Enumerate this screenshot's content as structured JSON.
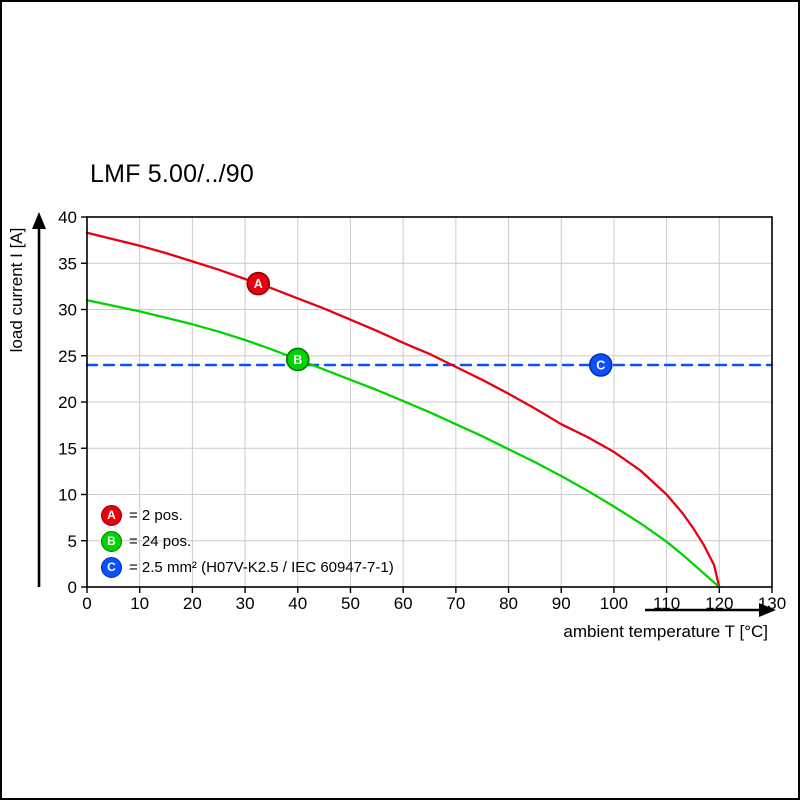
{
  "chart_data": {
    "type": "line",
    "title": "LMF 5.00/../90",
    "xlabel": "ambient temperature T [°C]",
    "ylabel": "load current I [A]",
    "xlim": [
      0,
      130
    ],
    "ylim": [
      0,
      40
    ],
    "xticks": [
      0,
      10,
      20,
      30,
      40,
      50,
      60,
      70,
      80,
      90,
      100,
      110,
      120,
      130
    ],
    "yticks": [
      0,
      5,
      10,
      15,
      20,
      25,
      30,
      35,
      40
    ],
    "grid": true,
    "grid_color": "#cccccc",
    "legend_position": "lower-left-inside",
    "series": [
      {
        "name": "A",
        "label": "= 2 pos.",
        "color": "#e8000f",
        "marker_stroke": "#9b0000",
        "style": "solid",
        "marker_at": [
          32.5,
          32.8
        ],
        "points": [
          [
            0,
            38.3
          ],
          [
            5,
            37.6
          ],
          [
            10,
            36.9
          ],
          [
            15,
            36.1
          ],
          [
            20,
            35.2
          ],
          [
            25,
            34.3
          ],
          [
            30,
            33.3
          ],
          [
            35,
            32.3
          ],
          [
            40,
            31.2
          ],
          [
            45,
            30.1
          ],
          [
            50,
            28.9
          ],
          [
            55,
            27.7
          ],
          [
            60,
            26.4
          ],
          [
            65,
            25.2
          ],
          [
            70,
            23.8
          ],
          [
            75,
            22.4
          ],
          [
            80,
            20.9
          ],
          [
            85,
            19.3
          ],
          [
            90,
            17.6
          ],
          [
            95,
            16.2
          ],
          [
            100,
            14.6
          ],
          [
            105,
            12.6
          ],
          [
            110,
            10.0
          ],
          [
            113,
            8.0
          ],
          [
            115,
            6.4
          ],
          [
            117,
            4.6
          ],
          [
            119,
            2.4
          ],
          [
            120,
            0
          ]
        ]
      },
      {
        "name": "B",
        "label": "= 24 pos.",
        "color": "#00d400",
        "marker_stroke": "#007a00",
        "style": "solid",
        "marker_at": [
          40,
          24.6
        ],
        "points": [
          [
            0,
            31.0
          ],
          [
            5,
            30.4
          ],
          [
            10,
            29.8
          ],
          [
            15,
            29.1
          ],
          [
            20,
            28.4
          ],
          [
            25,
            27.6
          ],
          [
            30,
            26.7
          ],
          [
            35,
            25.7
          ],
          [
            40,
            24.6
          ],
          [
            45,
            23.5
          ],
          [
            50,
            22.4
          ],
          [
            55,
            21.3
          ],
          [
            60,
            20.1
          ],
          [
            65,
            18.9
          ],
          [
            70,
            17.6
          ],
          [
            75,
            16.3
          ],
          [
            80,
            14.9
          ],
          [
            85,
            13.5
          ],
          [
            90,
            12.0
          ],
          [
            95,
            10.4
          ],
          [
            100,
            8.7
          ],
          [
            105,
            6.9
          ],
          [
            110,
            4.9
          ],
          [
            113,
            3.5
          ],
          [
            115,
            2.5
          ],
          [
            117,
            1.5
          ],
          [
            119,
            0.5
          ],
          [
            120,
            0
          ]
        ]
      },
      {
        "name": "C",
        "label": "= 2.5 mm² (H07V-K2.5 / IEC 60947-7-1)",
        "color": "#0a50ff",
        "marker_stroke": "#0030b0",
        "style": "dashed",
        "marker_at": [
          97.5,
          24
        ],
        "points": [
          [
            0,
            24
          ],
          [
            130,
            24
          ]
        ]
      }
    ]
  }
}
